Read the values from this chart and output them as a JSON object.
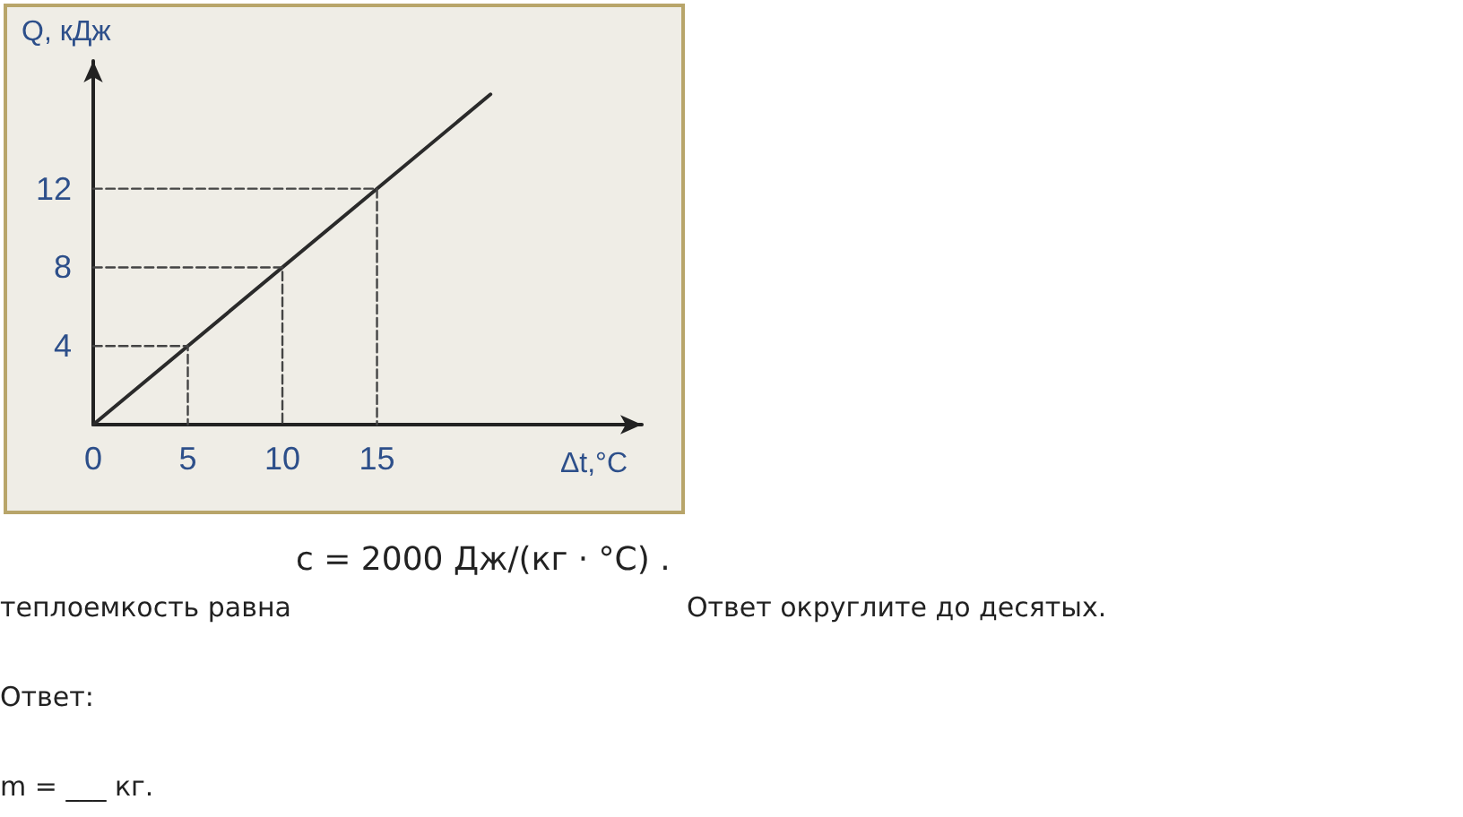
{
  "chart_data": {
    "type": "line",
    "xlabel": "Δt,°C",
    "ylabel": "Q, кДж",
    "xlim": [
      0,
      29
    ],
    "ylim": [
      0,
      18.5
    ],
    "xticks": [
      0,
      5,
      10,
      15
    ],
    "yticks": [
      4,
      8,
      12
    ],
    "grid": false,
    "marker": "none",
    "series": [
      {
        "color": "#2a2a2a",
        "x": [
          0,
          21
        ],
        "values": [
          0,
          16.8
        ],
        "line_style": "solid"
      },
      {
        "color": "#444444",
        "x": [
          0,
          5,
          5
        ],
        "values": [
          4,
          4,
          0
        ],
        "line_style": "dashed"
      },
      {
        "color": "#444444",
        "x": [
          0,
          10,
          10
        ],
        "values": [
          8,
          8,
          0
        ],
        "line_style": "dashed"
      },
      {
        "color": "#444444",
        "x": [
          0,
          15,
          15
        ],
        "values": [
          12,
          12,
          0
        ],
        "line_style": "dashed"
      }
    ],
    "annotations": [
      "теплоемкость равна",
      "c = 2000 Дж/(кг · °C) .",
      "Ответ округлите до десятых.",
      "Ответ:",
      "m = ___ кг."
    ]
  }
}
